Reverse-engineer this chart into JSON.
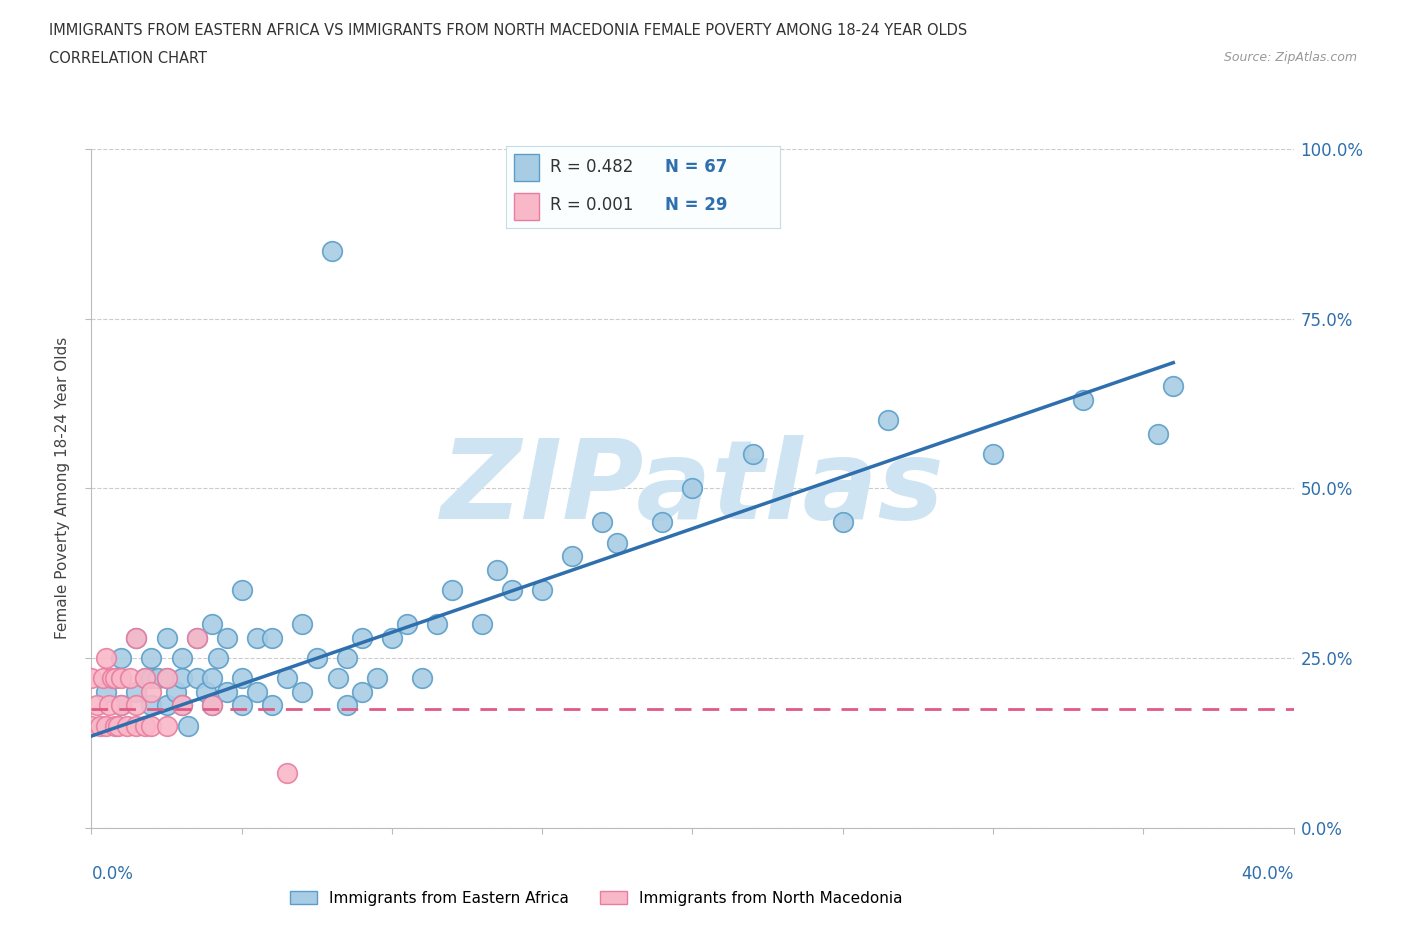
{
  "title_line1": "IMMIGRANTS FROM EASTERN AFRICA VS IMMIGRANTS FROM NORTH MACEDONIA FEMALE POVERTY AMONG 18-24 YEAR OLDS",
  "title_line2": "CORRELATION CHART",
  "source_text": "Source: ZipAtlas.com",
  "ylabel": "Female Poverty Among 18-24 Year Olds",
  "xlim": [
    0.0,
    0.4
  ],
  "ylim": [
    0.0,
    1.0
  ],
  "xticks": [
    0.0,
    0.05,
    0.1,
    0.15,
    0.2,
    0.25,
    0.3,
    0.35,
    0.4
  ],
  "yticks": [
    0.0,
    0.25,
    0.5,
    0.75,
    1.0
  ],
  "ytick_labels_right": [
    "0.0%",
    "25.0%",
    "50.0%",
    "75.0%",
    "100.0%"
  ],
  "blue_color": "#a8cce4",
  "blue_edge_color": "#5b9ec9",
  "pink_color": "#f9b8c8",
  "pink_edge_color": "#e87da0",
  "trend_blue": "#2f6fad",
  "trend_pink": "#e05a85",
  "legend_r_color": "#333333",
  "legend_n_color": "#2f6fad",
  "watermark_text": "ZIPatlas",
  "watermark_color": "#cfe4f2",
  "scatter1_label": "Immigrants from Eastern Africa",
  "scatter2_label": "Immigrants from North Macedonia",
  "blue_x": [
    0.005,
    0.008,
    0.01,
    0.01,
    0.015,
    0.015,
    0.018,
    0.02,
    0.02,
    0.02,
    0.022,
    0.025,
    0.025,
    0.025,
    0.028,
    0.03,
    0.03,
    0.03,
    0.032,
    0.035,
    0.035,
    0.038,
    0.04,
    0.04,
    0.04,
    0.042,
    0.045,
    0.045,
    0.05,
    0.05,
    0.05,
    0.055,
    0.055,
    0.06,
    0.06,
    0.065,
    0.07,
    0.07,
    0.075,
    0.08,
    0.082,
    0.085,
    0.085,
    0.09,
    0.09,
    0.095,
    0.1,
    0.105,
    0.11,
    0.115,
    0.12,
    0.13,
    0.135,
    0.14,
    0.15,
    0.16,
    0.17,
    0.175,
    0.19,
    0.2,
    0.22,
    0.25,
    0.265,
    0.3,
    0.33,
    0.355,
    0.36
  ],
  "blue_y": [
    0.2,
    0.22,
    0.18,
    0.25,
    0.2,
    0.28,
    0.22,
    0.18,
    0.22,
    0.25,
    0.22,
    0.18,
    0.22,
    0.28,
    0.2,
    0.18,
    0.22,
    0.25,
    0.15,
    0.22,
    0.28,
    0.2,
    0.18,
    0.22,
    0.3,
    0.25,
    0.2,
    0.28,
    0.18,
    0.22,
    0.35,
    0.2,
    0.28,
    0.18,
    0.28,
    0.22,
    0.2,
    0.3,
    0.25,
    0.85,
    0.22,
    0.18,
    0.25,
    0.2,
    0.28,
    0.22,
    0.28,
    0.3,
    0.22,
    0.3,
    0.35,
    0.3,
    0.38,
    0.35,
    0.35,
    0.4,
    0.45,
    0.42,
    0.45,
    0.5,
    0.55,
    0.45,
    0.6,
    0.55,
    0.63,
    0.58,
    0.65
  ],
  "pink_x": [
    0.0,
    0.0,
    0.002,
    0.003,
    0.004,
    0.005,
    0.005,
    0.006,
    0.007,
    0.008,
    0.008,
    0.009,
    0.01,
    0.01,
    0.012,
    0.013,
    0.015,
    0.015,
    0.015,
    0.018,
    0.018,
    0.02,
    0.02,
    0.025,
    0.025,
    0.03,
    0.035,
    0.04,
    0.065
  ],
  "pink_y": [
    0.15,
    0.22,
    0.18,
    0.15,
    0.22,
    0.15,
    0.25,
    0.18,
    0.22,
    0.15,
    0.22,
    0.15,
    0.18,
    0.22,
    0.15,
    0.22,
    0.15,
    0.18,
    0.28,
    0.15,
    0.22,
    0.15,
    0.2,
    0.15,
    0.22,
    0.18,
    0.28,
    0.18,
    0.08
  ],
  "blue_trend_x": [
    0.0,
    0.36
  ],
  "blue_trend_y": [
    0.135,
    0.685
  ],
  "pink_trend_x": [
    0.0,
    0.4
  ],
  "pink_trend_y": [
    0.175,
    0.175
  ],
  "bg_color": "#ffffff",
  "plot_bg_color": "#ffffff",
  "grid_color": "#cccccc",
  "legend_box_color": "#e8f4fb",
  "legend_box_edge": "#b8d4e8"
}
